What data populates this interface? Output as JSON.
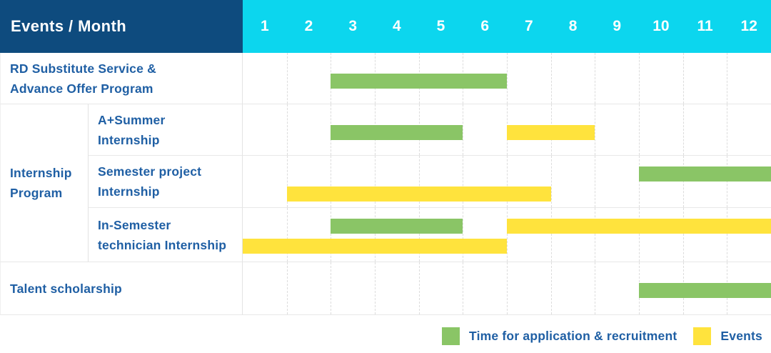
{
  "colors": {
    "header_bg": "#0E4B7E",
    "months_bg": "#0CD6EE",
    "recruitment_green": "#8AC566",
    "event_yellow": "#FFE33D",
    "label_text_blue": "#1F5FA4",
    "header_text": "#FFFFFF"
  },
  "header": {
    "title": "Events / Month",
    "months": [
      "1",
      "2",
      "3",
      "4",
      "5",
      "6",
      "7",
      "8",
      "9",
      "10",
      "11",
      "12"
    ]
  },
  "group": {
    "lines": [
      "Internship",
      "Program"
    ]
  },
  "rows": [
    {
      "lines": [
        "RD Substitute Service &",
        "Advance Offer Program"
      ]
    },
    {
      "lines": [
        "A+Summer",
        "Internship"
      ]
    },
    {
      "lines": [
        "Semester project",
        "Internship"
      ]
    },
    {
      "lines": [
        "In-Semester",
        "technician Internship"
      ]
    },
    {
      "lines": [
        "Talent scholarship"
      ]
    }
  ],
  "legend": {
    "items": [
      {
        "kind": "recruitment",
        "label": "Time for application & recruitment",
        "color": "#8AC566"
      },
      {
        "kind": "event",
        "label": "Events",
        "color": "#FFE33D"
      }
    ]
  },
  "chart_data": {
    "type": "table",
    "subtype": "gantt",
    "title": "Events / Month",
    "x_axis": {
      "label": "Month",
      "ticks": [
        "1",
        "2",
        "3",
        "4",
        "5",
        "6",
        "7",
        "8",
        "9",
        "10",
        "11",
        "12"
      ],
      "range": [
        1,
        12
      ]
    },
    "legend": [
      "Time for application & recruitment",
      "Events"
    ],
    "legend_position": "bottom-right",
    "rows": [
      {
        "group": null,
        "label": "RD Substitute Service & Advance Offer Program",
        "spans": [
          {
            "kind": "recruitment",
            "from": 3,
            "to": 6,
            "lane": "single"
          }
        ]
      },
      {
        "group": "Internship Program",
        "label": "A+Summer Internship",
        "spans": [
          {
            "kind": "recruitment",
            "from": 3,
            "to": 5,
            "lane": "single"
          },
          {
            "kind": "event",
            "from": 7,
            "to": 8,
            "lane": "single"
          }
        ]
      },
      {
        "group": "Internship Program",
        "label": "Semester project Internship",
        "spans": [
          {
            "kind": "recruitment",
            "from": 10,
            "to": 12,
            "lane": "top"
          },
          {
            "kind": "event",
            "from": 2,
            "to": 7,
            "lane": "bottom"
          }
        ]
      },
      {
        "group": "Internship Program",
        "label": "In-Semester technician Internship",
        "spans": [
          {
            "kind": "recruitment",
            "from": 3,
            "to": 5,
            "lane": "top"
          },
          {
            "kind": "event",
            "from": 7,
            "to": 12,
            "lane": "top"
          },
          {
            "kind": "event",
            "from": 1,
            "to": 6,
            "lane": "bottom"
          }
        ]
      },
      {
        "group": null,
        "label": "Talent scholarship",
        "spans": [
          {
            "kind": "recruitment",
            "from": 10,
            "to": 12,
            "lane": "single"
          }
        ]
      }
    ]
  }
}
